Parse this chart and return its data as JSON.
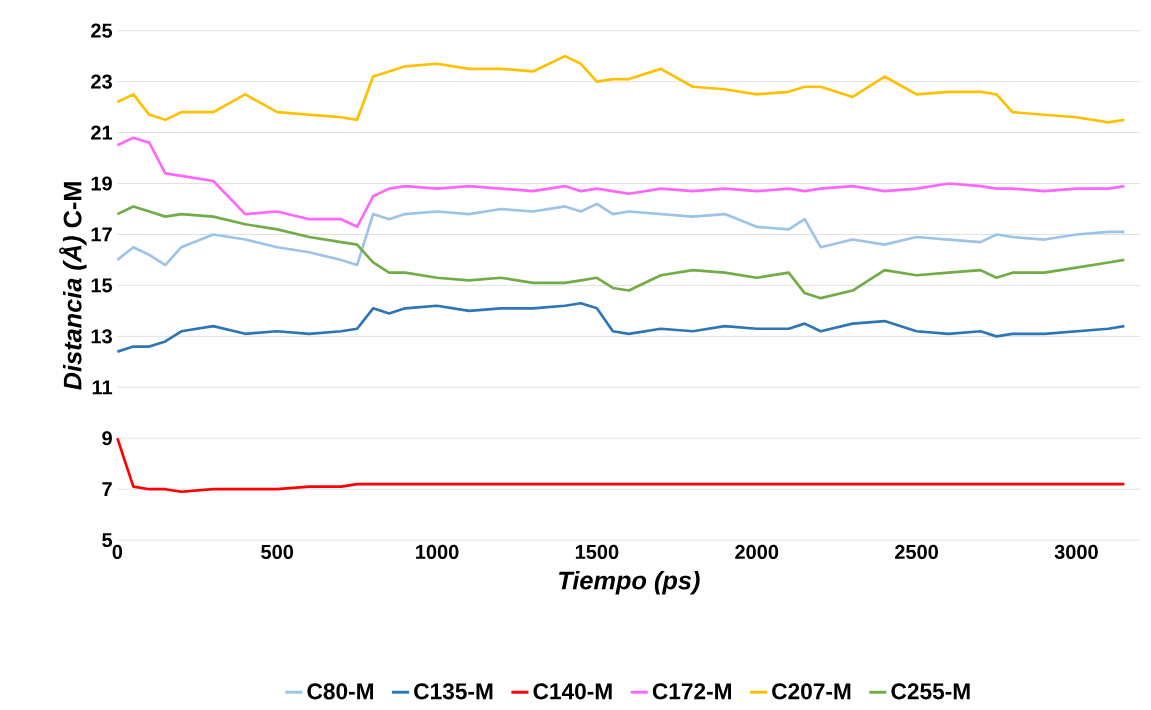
{
  "chart_data": {
    "type": "line",
    "xlabel": "Tiempo (ps)",
    "ylabel": "*Distancia (Å)* C-M",
    "x": [
      0,
      50,
      100,
      150,
      200,
      300,
      400,
      500,
      600,
      700,
      750,
      800,
      850,
      900,
      1000,
      1100,
      1200,
      1300,
      1400,
      1450,
      1500,
      1550,
      1600,
      1700,
      1800,
      1900,
      2000,
      2100,
      2150,
      2200,
      2300,
      2400,
      2500,
      2600,
      2700,
      2750,
      2800,
      2900,
      3000,
      3100,
      3150
    ],
    "xlim": [
      0,
      3200
    ],
    "xticks": [
      0,
      500,
      1000,
      1500,
      2000,
      2500,
      3000
    ],
    "ylim": [
      5,
      25
    ],
    "yticks": [
      5,
      7,
      9,
      11,
      13,
      15,
      17,
      19,
      21,
      23,
      25
    ],
    "grid": "y",
    "legend": "bottom",
    "marker": "none",
    "line_style": "solid",
    "series": [
      {
        "name": "C80-M",
        "color": "#9dc3e6",
        "values": [
          16,
          16.5,
          16.2,
          15.8,
          16.5,
          17,
          16.8,
          16.5,
          16.3,
          16,
          15.8,
          17.8,
          17.6,
          17.8,
          17.9,
          17.8,
          18,
          17.9,
          18.1,
          17.9,
          18.2,
          17.8,
          17.9,
          17.8,
          17.7,
          17.8,
          17.3,
          17.2,
          17.6,
          16.5,
          16.8,
          16.6,
          16.9,
          16.8,
          16.7,
          17,
          16.9,
          16.8,
          17,
          17.1,
          17.1
        ]
      },
      {
        "name": "C135-M",
        "color": "#2e75b6",
        "values": [
          12.4,
          12.6,
          12.6,
          12.8,
          13.2,
          13.4,
          13.1,
          13.2,
          13.1,
          13.2,
          13.3,
          14.1,
          13.9,
          14.1,
          14.2,
          14,
          14.1,
          14.1,
          14.2,
          14.3,
          14.1,
          13.2,
          13.1,
          13.3,
          13.2,
          13.4,
          13.3,
          13.3,
          13.5,
          13.2,
          13.5,
          13.6,
          13.2,
          13.1,
          13.2,
          13,
          13.1,
          13.1,
          13.2,
          13.3,
          13.4
        ]
      },
      {
        "name": "C140-M",
        "color": "#ff0000",
        "values": [
          9,
          7.1,
          7,
          7,
          6.9,
          7,
          7,
          7,
          7.1,
          7.1,
          7.2,
          7.2,
          7.2,
          7.2,
          7.2,
          7.2,
          7.2,
          7.2,
          7.2,
          7.2,
          7.2,
          7.2,
          7.2,
          7.2,
          7.2,
          7.2,
          7.2,
          7.2,
          7.2,
          7.2,
          7.2,
          7.2,
          7.2,
          7.2,
          7.2,
          7.2,
          7.2,
          7.2,
          7.2,
          7.2,
          7.2
        ]
      },
      {
        "name": "C172-M",
        "color": "#ff66ff",
        "values": [
          20.5,
          20.8,
          20.6,
          19.4,
          19.3,
          19.1,
          17.8,
          17.9,
          17.6,
          17.6,
          17.3,
          18.5,
          18.8,
          18.9,
          18.8,
          18.9,
          18.8,
          18.7,
          18.9,
          18.7,
          18.8,
          18.7,
          18.6,
          18.8,
          18.7,
          18.8,
          18.7,
          18.8,
          18.7,
          18.8,
          18.9,
          18.7,
          18.8,
          19,
          18.9,
          18.8,
          18.8,
          18.7,
          18.8,
          18.8,
          18.9
        ]
      },
      {
        "name": "C207-M",
        "color": "#ffc000",
        "values": [
          22.2,
          22.5,
          21.7,
          21.5,
          21.8,
          21.8,
          22.5,
          21.8,
          21.7,
          21.6,
          21.5,
          23.2,
          23.4,
          23.6,
          23.7,
          23.5,
          23.5,
          23.4,
          24,
          23.7,
          23,
          23.1,
          23.1,
          23.5,
          22.8,
          22.7,
          22.5,
          22.6,
          22.8,
          22.8,
          22.4,
          23.2,
          22.5,
          22.6,
          22.6,
          22.5,
          21.8,
          21.7,
          21.6,
          21.4,
          21.5
        ]
      },
      {
        "name": "C255-M",
        "color": "#70ad47",
        "values": [
          17.8,
          18.1,
          17.9,
          17.7,
          17.8,
          17.7,
          17.4,
          17.2,
          16.9,
          16.7,
          16.6,
          15.9,
          15.5,
          15.5,
          15.3,
          15.2,
          15.3,
          15.1,
          15.1,
          15.2,
          15.3,
          14.9,
          14.8,
          15.4,
          15.6,
          15.5,
          15.3,
          15.5,
          14.7,
          14.5,
          14.8,
          15.6,
          15.4,
          15.5,
          15.6,
          15.3,
          15.5,
          15.5,
          15.7,
          15.9,
          16
        ]
      }
    ]
  }
}
